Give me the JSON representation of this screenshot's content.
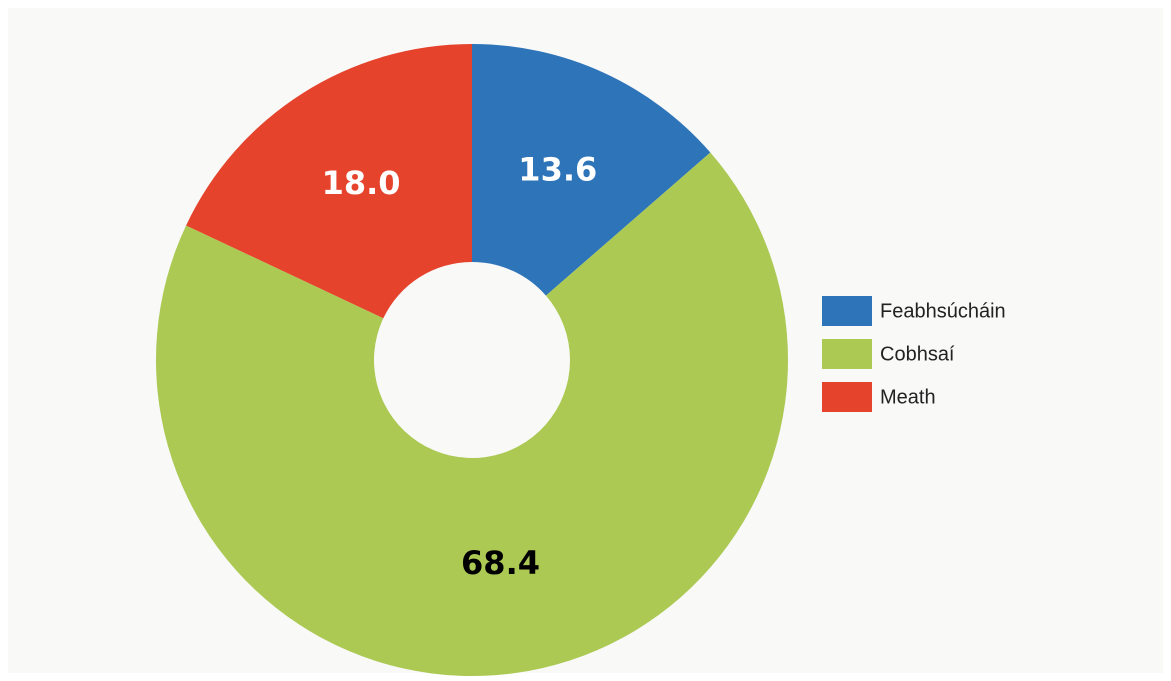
{
  "chart_data": {
    "type": "donut",
    "categories": [
      "Feabhsúcháin",
      "Cobhsaí",
      "Meath"
    ],
    "values": [
      13.6,
      68.4,
      18.0
    ],
    "value_labels": [
      "13.6",
      "68.4",
      "18.0"
    ],
    "colors": [
      "#2e74b9",
      "#acc954",
      "#e5432c"
    ],
    "legend": "right"
  }
}
